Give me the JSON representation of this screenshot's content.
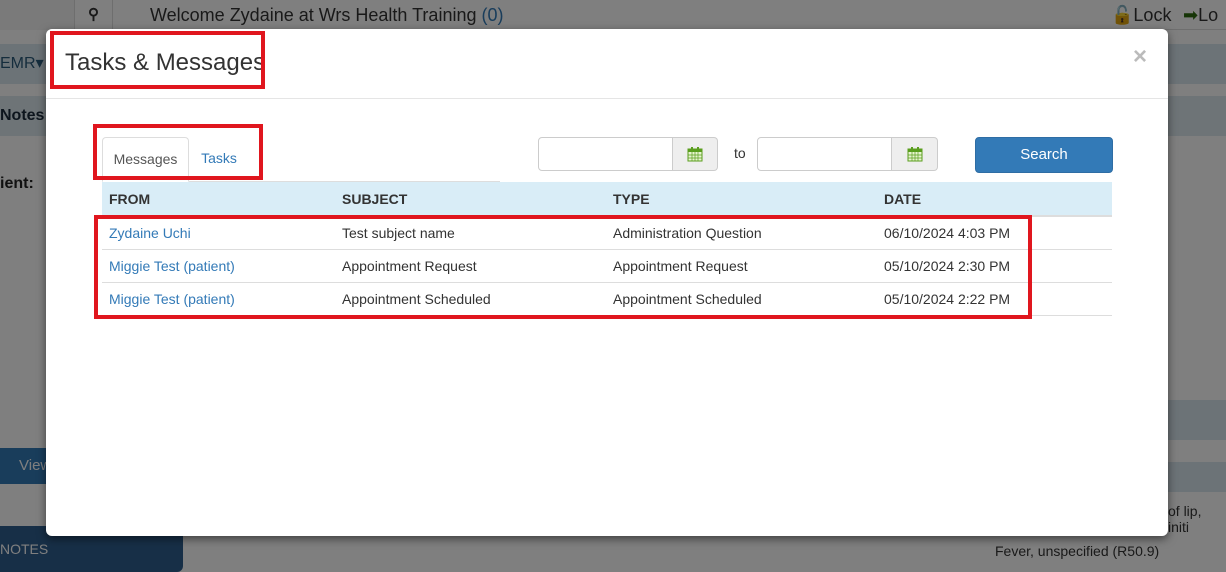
{
  "background": {
    "welcome_text": "Welcome Zydaine at Wrs Health Training",
    "welcome_count": "(0)",
    "lock_label": "Lock",
    "logout_label": "Lo",
    "emr_menu": "EMR",
    "section_heading": "Notes a",
    "patient_label": "ient:",
    "view_button": "View",
    "notes_button": "NOTES",
    "diagnosis_1": "of lip, initi",
    "diagnosis_2": "Fever, unspecified (R50.9)"
  },
  "modal": {
    "title": "Tasks & Messages",
    "close": "×",
    "tabs": [
      {
        "label": "Messages",
        "active": true
      },
      {
        "label": "Tasks",
        "active": false
      }
    ],
    "date_from": {
      "value": "",
      "placeholder": ""
    },
    "to_label": "to",
    "date_to": {
      "value": "",
      "placeholder": ""
    },
    "search_button": "Search",
    "table": {
      "headers": [
        "FROM",
        "SUBJECT",
        "TYPE",
        "DATE"
      ],
      "rows": [
        {
          "from": "Zydaine Uchi",
          "subject": "Test subject name",
          "type": "Administration Question",
          "date": "06/10/2024 4:03 PM"
        },
        {
          "from": "Miggie Test (patient)",
          "subject": "Appointment Request",
          "type": "Appointment Request",
          "date": "05/10/2024 2:30 PM"
        },
        {
          "from": "Miggie Test (patient)",
          "subject": "Appointment Scheduled",
          "type": "Appointment Scheduled",
          "date": "05/10/2024 2:22 PM"
        }
      ]
    }
  },
  "colors": {
    "primary": "#337ab7",
    "table_header": "#d9edf7",
    "annotation": "#e0161e",
    "calendar_icon": "#5a9e1e"
  }
}
